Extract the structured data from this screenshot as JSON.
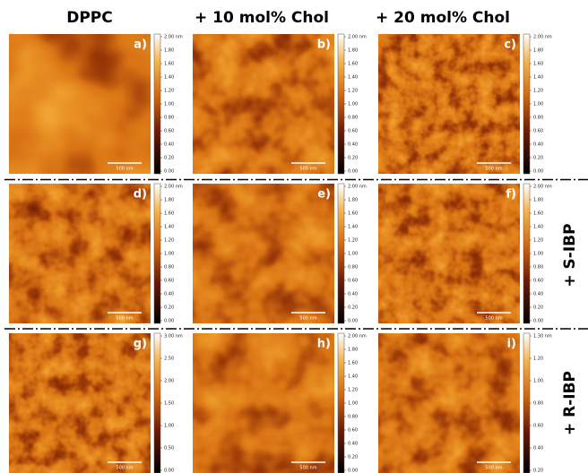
{
  "column_headers": [
    "DPPC",
    "+ 10 mol% Chol",
    "+ 20 mol% Chol"
  ],
  "row_labels": [
    "+ S-IBP",
    "+ R-IBP"
  ],
  "panels": [
    {
      "letter": "a)",
      "scale_bar": "500 nm",
      "colorbar": [
        "2.00 nm",
        "1.80",
        "1.60",
        "1.40",
        "1.20",
        "1.00",
        "0.80",
        "0.60",
        "0.40",
        "0.20",
        "0.00"
      ]
    },
    {
      "letter": "b)",
      "scale_bar": "500 nm",
      "colorbar": [
        "2.00 nm",
        "1.80",
        "1.60",
        "1.40",
        "1.20",
        "1.00",
        "0.80",
        "0.60",
        "0.40",
        "0.20",
        "0.00"
      ]
    },
    {
      "letter": "c)",
      "scale_bar": "500 nm",
      "colorbar": [
        "2.00 nm",
        "1.80",
        "1.60",
        "1.40",
        "1.20",
        "1.00",
        "0.80",
        "0.60",
        "0.40",
        "0.20",
        "0.00"
      ]
    },
    {
      "letter": "d)",
      "scale_bar": "500 nm",
      "colorbar": [
        "2.00 nm",
        "1.80",
        "1.60",
        "1.40",
        "1.20",
        "1.00",
        "0.80",
        "0.60",
        "0.40",
        "0.20",
        "0.00"
      ]
    },
    {
      "letter": "e)",
      "scale_bar": "500 nm",
      "colorbar": [
        "2.00 nm",
        "1.80",
        "1.60",
        "1.40",
        "1.20",
        "1.00",
        "0.80",
        "0.60",
        "0.40",
        "0.20",
        "0.00"
      ]
    },
    {
      "letter": "f)",
      "scale_bar": "500 nm",
      "colorbar": [
        "2.00 nm",
        "1.80",
        "1.60",
        "1.40",
        "1.20",
        "1.00",
        "0.80",
        "0.60",
        "0.40",
        "0.20",
        "0.00"
      ]
    },
    {
      "letter": "g)",
      "scale_bar": "500 nm",
      "colorbar": [
        "3.00 nm",
        "2.50",
        "2.00",
        "1.50",
        "1.00",
        "0.50",
        "0.00"
      ]
    },
    {
      "letter": "h)",
      "scale_bar": "500 nm",
      "colorbar": [
        "2.00 nm",
        "1.80",
        "1.60",
        "1.40",
        "1.20",
        "1.00",
        "0.80",
        "0.60",
        "0.40",
        "0.20",
        "0.00"
      ]
    },
    {
      "letter": "i)",
      "scale_bar": "500 nm",
      "colorbar": [
        "1.30 nm",
        "1.20",
        "1.00",
        "0.80",
        "0.60",
        "0.40",
        "0.20"
      ]
    }
  ]
}
